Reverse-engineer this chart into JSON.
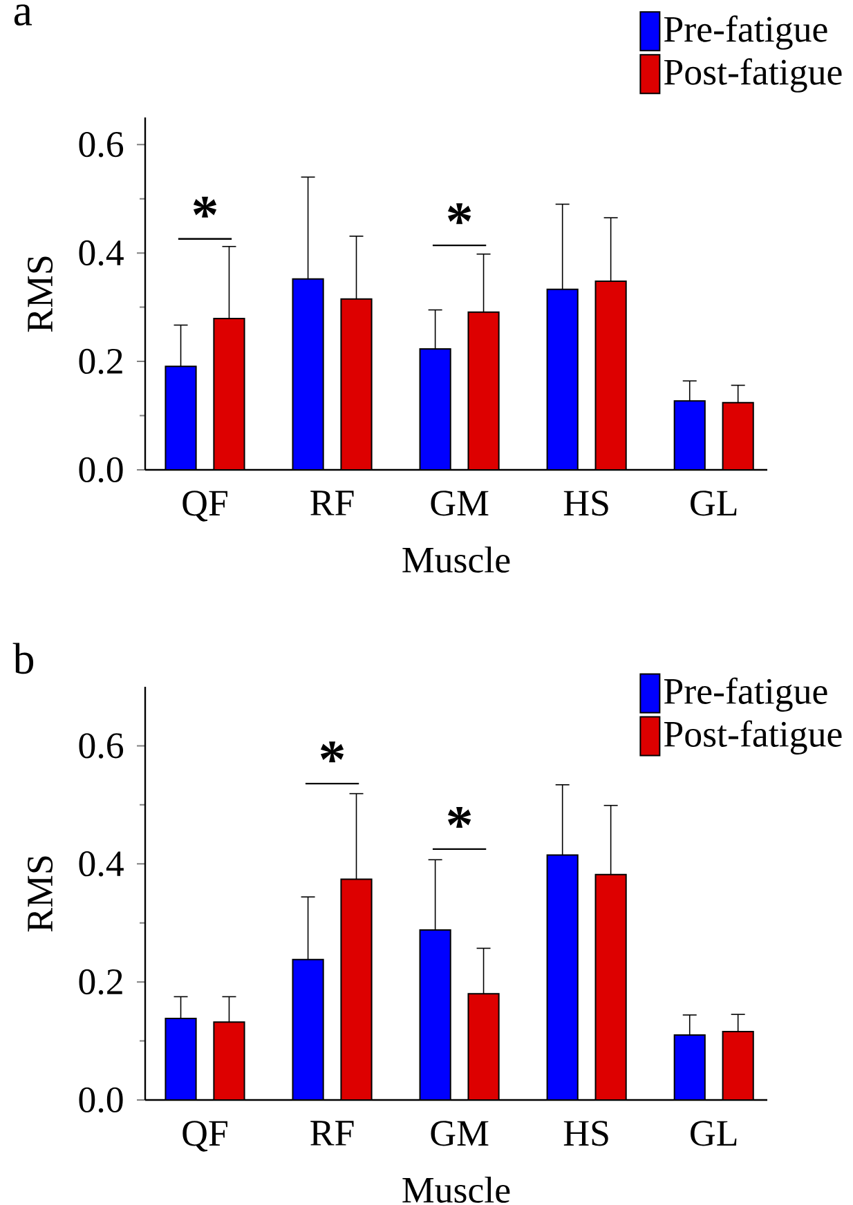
{
  "chart_data": [
    {
      "type": "bar",
      "title": "a",
      "xlabel": "Muscle",
      "ylabel": "RMS",
      "categories": [
        "QF",
        "RF",
        "GM",
        "HS",
        "GL"
      ],
      "ylim": [
        0,
        0.65
      ],
      "yticks": [
        {
          "value": 0,
          "label": "0.0"
        },
        0.2,
        0.4,
        0.6
      ],
      "legend": "top right",
      "series": [
        {
          "name": "Pre-fatigue",
          "color": "#0000ff",
          "values": [
            0.191,
            0.352,
            0.223,
            0.333,
            0.127
          ],
          "errors": [
            [
              0.191,
              0.267
            ],
            [
              0.352,
              0.54
            ],
            [
              0.223,
              0.295
            ],
            [
              0.333,
              0.49
            ],
            [
              0.127,
              0.164
            ]
          ]
        },
        {
          "name": "Post-fatigue",
          "color": "#dd0000",
          "values": [
            0.279,
            0.315,
            0.291,
            0.348,
            0.124
          ],
          "errors": [
            [
              0.279,
              0.412
            ],
            [
              0.315,
              0.431
            ],
            [
              0.291,
              0.398
            ],
            [
              0.348,
              0.465
            ],
            [
              0.124,
              0.156
            ]
          ]
        }
      ],
      "annotations": [
        "*",
        "*"
      ]
    },
    {
      "type": "bar",
      "title": "b",
      "xlabel": "Muscle",
      "ylabel": "RMS",
      "categories": [
        "QF",
        "RF",
        "GM",
        "HS",
        "GL"
      ],
      "ylim": [
        0,
        0.7
      ],
      "yticks": [
        {
          "value": 0,
          "label": "0.0"
        },
        0.2,
        0.4,
        0.6
      ],
      "legend": "top right",
      "series": [
        {
          "name": "Pre-fatigue",
          "color": "#0000ff",
          "values": [
            0.138,
            0.238,
            0.288,
            0.415,
            0.11
          ],
          "errors": [
            [
              0.138,
              0.175
            ],
            [
              0.238,
              0.344
            ],
            [
              0.288,
              0.407
            ],
            [
              0.415,
              0.534
            ],
            [
              0.11,
              0.144
            ]
          ]
        },
        {
          "name": "Post-fatigue",
          "color": "#dd0000",
          "values": [
            0.132,
            0.374,
            0.18,
            0.382,
            0.116
          ],
          "errors": [
            [
              0.132,
              0.175
            ],
            [
              0.374,
              0.519
            ],
            [
              0.18,
              0.257
            ],
            [
              0.382,
              0.499
            ],
            [
              0.116,
              0.145
            ]
          ]
        }
      ],
      "annotations": [
        "*",
        "*"
      ]
    }
  ]
}
